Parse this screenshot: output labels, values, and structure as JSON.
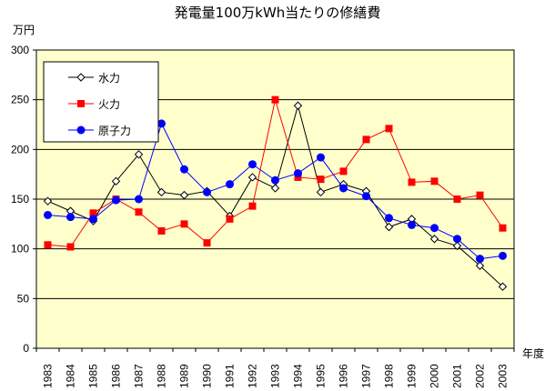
{
  "chart_data": {
    "type": "line",
    "title": "発電量100万kWh当たりの修繕費",
    "ylabel": "万円",
    "xlabel": "年度",
    "ylim": [
      0,
      300
    ],
    "yticks": [
      0,
      50,
      100,
      150,
      200,
      250,
      300
    ],
    "grid": "horizontal",
    "legend_position": "top-left",
    "categories": [
      "1983",
      "1984",
      "1985",
      "1986",
      "1987",
      "1988",
      "1989",
      "1990",
      "1991",
      "1992",
      "1993",
      "1994",
      "1995",
      "1996",
      "1997",
      "1998",
      "1999",
      "2000",
      "2001",
      "2002",
      "2003"
    ],
    "series": [
      {
        "name": "水力",
        "color": "#000000",
        "marker": "diamond-open",
        "values": [
          148,
          138,
          128,
          168,
          195,
          157,
          154,
          158,
          133,
          172,
          161,
          244,
          157,
          165,
          158,
          122,
          130,
          110,
          103,
          83,
          62
        ]
      },
      {
        "name": "火力",
        "color": "#ff0000",
        "marker": "square",
        "values": [
          104,
          102,
          136,
          150,
          137,
          118,
          125,
          106,
          130,
          143,
          250,
          172,
          170,
          178,
          210,
          221,
          167,
          168,
          150,
          154,
          121
        ]
      },
      {
        "name": "原子力",
        "color": "#0000ff",
        "marker": "circle",
        "values": [
          134,
          132,
          130,
          149,
          150,
          226,
          180,
          157,
          165,
          185,
          169,
          176,
          192,
          161,
          153,
          131,
          124,
          121,
          110,
          90,
          93
        ]
      }
    ],
    "plot_background": "#ffffcc"
  }
}
